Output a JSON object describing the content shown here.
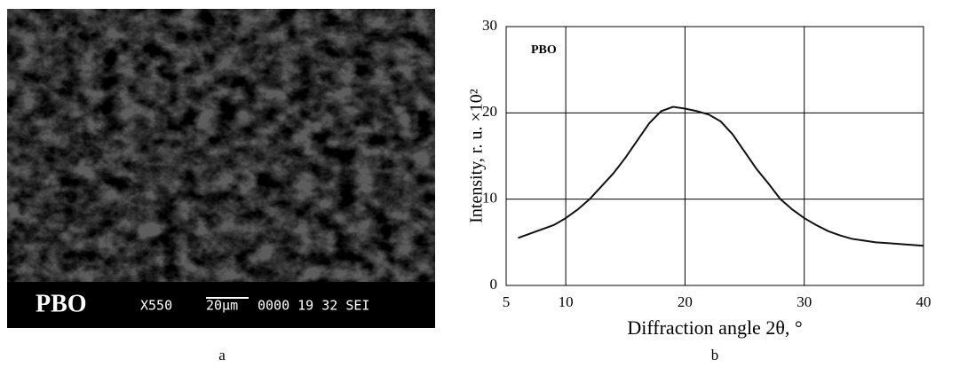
{
  "micrograph": {
    "label": "PBO",
    "magnification": "X550",
    "scale": "20µm",
    "info": "0000 19 32 SEI",
    "caption": "a"
  },
  "chart_data": {
    "type": "line",
    "caption": "b",
    "annotation": "PBO",
    "xlabel": "Diffraction angle  2θ, °",
    "ylabel": "Intensity, r. u. ×10²",
    "x": [
      6,
      7,
      8,
      9,
      10,
      11,
      12,
      13,
      14,
      15,
      16,
      17,
      18,
      19,
      20,
      21,
      22,
      23,
      24,
      25,
      26,
      27,
      28,
      29,
      30,
      31,
      32,
      33,
      34,
      35,
      36,
      37,
      38,
      39,
      40
    ],
    "series": [
      {
        "color": "#111111",
        "values": [
          5.5,
          6,
          6.5,
          7,
          7.8,
          8.8,
          10,
          11.5,
          13,
          14.8,
          16.8,
          18.8,
          20.2,
          20.7,
          20.5,
          20.2,
          19.8,
          19,
          17.5,
          15.5,
          13.5,
          11.8,
          10,
          8.8,
          7.8,
          7,
          6.3,
          5.8,
          5.4,
          5.2,
          5,
          4.9,
          4.8,
          4.7,
          4.6
        ]
      }
    ],
    "xlim": [
      5,
      40
    ],
    "xticks": [
      5,
      10,
      20,
      30,
      40
    ],
    "ylim": [
      0,
      30
    ],
    "yticks": [
      0,
      10,
      20,
      30
    ],
    "grid": true
  }
}
